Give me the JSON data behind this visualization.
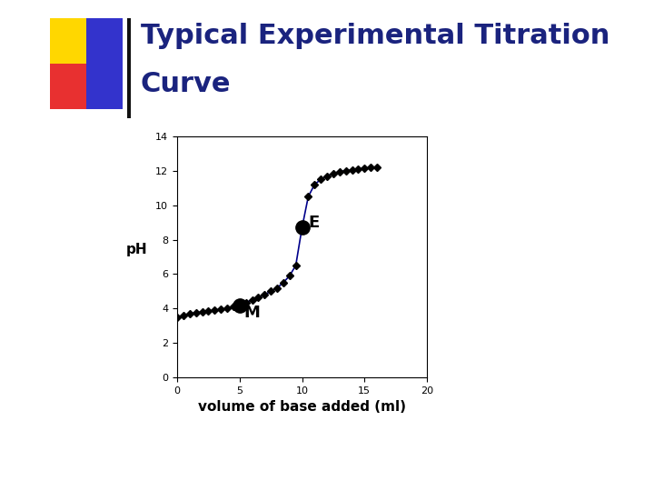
{
  "title_line1": "Typical Experimental Titration",
  "title_line2": "Curve",
  "title_color": "#1a237e",
  "title_fontsize": 22,
  "xlabel": "volume of base added (ml)",
  "ylabel": "pH",
  "xlabel_fontsize": 11,
  "ylabel_fontsize": 11,
  "xlim": [
    0,
    20
  ],
  "ylim": [
    0,
    14
  ],
  "xticks": [
    0,
    5,
    10,
    15,
    20
  ],
  "yticks": [
    0,
    2,
    4,
    6,
    8,
    10,
    12,
    14
  ],
  "x_data": [
    0,
    0.5,
    1.0,
    1.5,
    2.0,
    2.5,
    3.0,
    3.5,
    4.0,
    4.5,
    5.0,
    5.5,
    6.0,
    6.5,
    7.0,
    7.5,
    8.0,
    8.5,
    9.0,
    9.5,
    10.0,
    10.5,
    11.0,
    11.5,
    12.0,
    12.5,
    13.0,
    13.5,
    14.0,
    14.5,
    15.0,
    15.5,
    16.0
  ],
  "y_data": [
    3.5,
    3.6,
    3.7,
    3.75,
    3.8,
    3.85,
    3.9,
    3.95,
    4.0,
    4.1,
    4.2,
    4.35,
    4.5,
    4.65,
    4.8,
    5.0,
    5.2,
    5.5,
    5.9,
    6.5,
    8.7,
    10.5,
    11.2,
    11.5,
    11.7,
    11.85,
    11.95,
    12.0,
    12.05,
    12.1,
    12.15,
    12.18,
    12.2
  ],
  "line_color": "#00008B",
  "marker_color": "black",
  "marker_style": "D",
  "marker_size": 4,
  "point_M_x": 5.0,
  "point_M_y": 4.2,
  "point_E_x": 10.0,
  "point_E_y": 8.7,
  "label_M": "M",
  "label_E": "E",
  "label_fontsize": 13,
  "bg_color": "#ffffff",
  "plot_bg_color": "#ffffff",
  "corner_yellow": "#FFD700",
  "corner_red": "#E83030",
  "corner_blue": "#3333CC",
  "corner_line_color": "#111111"
}
